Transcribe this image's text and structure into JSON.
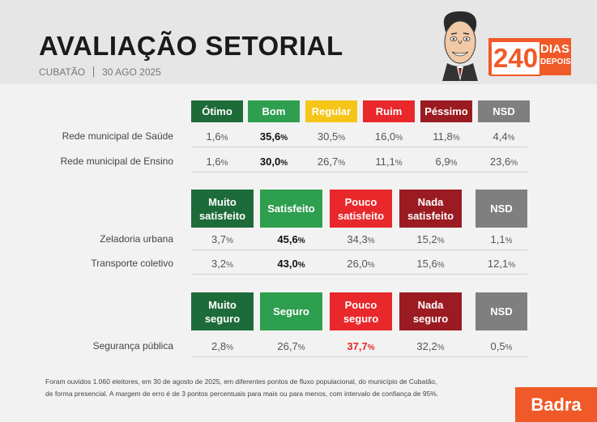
{
  "header": {
    "title": "AVALIAÇÃO SETORIAL",
    "city": "CUBATÃO",
    "date": "30 AGO 2025",
    "badge_number": "240",
    "badge_line1": "DIAS",
    "badge_line2": "DEPOIS"
  },
  "colors": {
    "dark_green": "#1e6b3a",
    "green": "#2e9e4f",
    "yellow": "#f5c518",
    "red": "#e8282b",
    "dark_red": "#9b1b22",
    "gray": "#7f7f7f",
    "orange": "#f05a28"
  },
  "chart_data": [
    {
      "type": "table",
      "categories": [
        "Ótimo",
        "Bom",
        "Regular",
        "Ruim",
        "Péssimo",
        "NSD"
      ],
      "rows": [
        {
          "label": "Rede municipal de Saúde",
          "values": [
            "1,6",
            "35,6",
            "30,5",
            "16,0",
            "11,8",
            "4,4"
          ],
          "highlight": 1
        },
        {
          "label": "Rede municipal de Ensino",
          "values": [
            "1,6",
            "30,0",
            "26,7",
            "11,1",
            "6,9",
            "23,6"
          ],
          "highlight": 1
        }
      ]
    },
    {
      "type": "table",
      "categories": [
        "Muito satisfeito",
        "Satisfeito",
        "Pouco satisfeito",
        "Nada satisfeito",
        "NSD"
      ],
      "rows": [
        {
          "label": "Zeladoria urbana",
          "values": [
            "3,7",
            "45,6",
            "34,3",
            "15,2",
            "1,1"
          ],
          "highlight": 1
        },
        {
          "label": "Transporte coletivo",
          "values": [
            "3,2",
            "43,0",
            "26,0",
            "15,6",
            "12,1"
          ],
          "highlight": 1
        }
      ]
    },
    {
      "type": "table",
      "categories": [
        "Muito seguro",
        "Seguro",
        "Pouco seguro",
        "Nada seguro",
        "NSD"
      ],
      "rows": [
        {
          "label": "Segurança pública",
          "values": [
            "2,8",
            "26,7",
            "37,7",
            "32,2",
            "0,5"
          ],
          "highlight": 2
        }
      ]
    }
  ],
  "footnote": {
    "line1": "Foram ouvidos 1.060 eleitores, em 30 de agosto de 2025, em diferentes pontos de fluxo populacional, do município de Cubatão,",
    "line2": "de forma presencial. A margem de erro é de 3 pontos percentuais para mais ou para menos, com intervalo de confiança de 95%."
  },
  "brand": "Badra"
}
